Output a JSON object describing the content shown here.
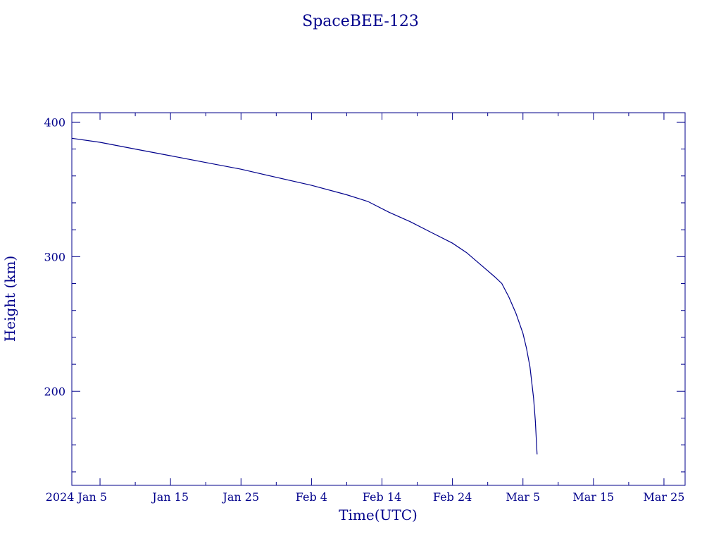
{
  "chart_data": {
    "type": "line",
    "title": "SpaceBEE-123",
    "xlabel": "Time(UTC)",
    "ylabel": "Height (km)",
    "x_axis": {
      "kind": "date",
      "range": [
        "2024-01-01",
        "2024-03-28"
      ],
      "tick_labels": [
        {
          "date": "2024-01-05",
          "label": "2024 Jan  5"
        },
        {
          "date": "2024-01-15",
          "label": "Jan 15"
        },
        {
          "date": "2024-01-25",
          "label": "Jan 25"
        },
        {
          "date": "2024-02-04",
          "label": "Feb  4"
        },
        {
          "date": "2024-02-14",
          "label": "Feb 14"
        },
        {
          "date": "2024-02-24",
          "label": "Feb 24"
        },
        {
          "date": "2024-03-05",
          "label": "Mar  5"
        },
        {
          "date": "2024-03-15",
          "label": "Mar 15"
        },
        {
          "date": "2024-03-25",
          "label": "Mar 25"
        }
      ]
    },
    "y_axis": {
      "range": [
        130,
        407
      ],
      "tick_labels": [
        {
          "value": 200,
          "label": "200"
        },
        {
          "value": 300,
          "label": "300"
        },
        {
          "value": 400,
          "label": "400"
        }
      ]
    },
    "grid": false,
    "series": [
      {
        "color": "#00008b",
        "points": [
          {
            "x": "2024-01-01",
            "y": 388
          },
          {
            "x": "2024-01-05",
            "y": 385
          },
          {
            "x": "2024-01-10",
            "y": 380
          },
          {
            "x": "2024-01-15",
            "y": 375
          },
          {
            "x": "2024-01-20",
            "y": 370
          },
          {
            "x": "2024-01-25",
            "y": 365
          },
          {
            "x": "2024-01-30",
            "y": 359
          },
          {
            "x": "2024-02-04",
            "y": 353
          },
          {
            "x": "2024-02-09",
            "y": 346
          },
          {
            "x": "2024-02-12",
            "y": 341
          },
          {
            "x": "2024-02-15",
            "y": 333
          },
          {
            "x": "2024-02-18",
            "y": 326
          },
          {
            "x": "2024-02-21",
            "y": 318
          },
          {
            "x": "2024-02-24",
            "y": 310
          },
          {
            "x": "2024-02-26",
            "y": 303
          },
          {
            "x": "2024-02-28",
            "y": 294
          },
          {
            "x": "2024-03-01",
            "y": 285
          },
          {
            "x": "2024-03-02",
            "y": 280
          },
          {
            "x": "2024-03-03",
            "y": 270
          },
          {
            "x": "2024-03-04",
            "y": 258
          },
          {
            "x": "2024-03-05",
            "y": 243
          },
          {
            "x": "2024-03-05T12:00",
            "y": 232
          },
          {
            "x": "2024-03-06",
            "y": 218
          },
          {
            "x": "2024-03-06T12:00",
            "y": 195
          },
          {
            "x": "2024-03-06T18:00",
            "y": 178
          },
          {
            "x": "2024-03-07",
            "y": 153
          }
        ]
      }
    ]
  }
}
